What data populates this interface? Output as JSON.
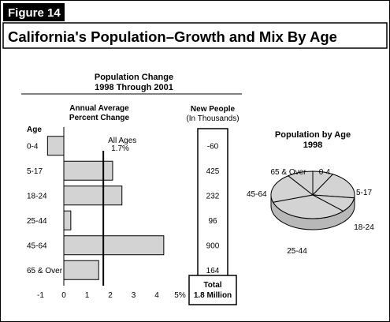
{
  "figure": {
    "badge": "Figure 14",
    "title": "California's Population–Growth and Mix By Age"
  },
  "chart_data": [
    {
      "type": "bar",
      "orientation": "horizontal",
      "title": "Population Change",
      "subtitle": "1998 Through 2001",
      "column_header": [
        "Annual Average",
        "Percent Change"
      ],
      "category_header": "Age",
      "categories": [
        "0-4",
        "5-17",
        "18-24",
        "25-44",
        "45-64",
        "65 & Over"
      ],
      "values": [
        -0.7,
        2.1,
        2.5,
        0.3,
        4.3,
        1.5
      ],
      "xlim": [
        -1,
        5
      ],
      "x_ticks": [
        "-1",
        "0",
        "1",
        "2",
        "3",
        "4",
        "5%"
      ],
      "reference_line": {
        "label": "All Ages",
        "value_label": "1.7%",
        "value": 1.7
      },
      "bar_color": "#d3d3d3"
    },
    {
      "type": "table",
      "header": [
        "New People",
        "(In Thousands)"
      ],
      "values": [
        "-60",
        "425",
        "232",
        "96",
        "900",
        "164"
      ],
      "total_label": "Total",
      "total_value": "1.8 Million"
    },
    {
      "type": "pie",
      "title": "Population by Age",
      "subtitle": "1998",
      "labels": [
        "0-4",
        "5-17",
        "18-24",
        "25-44",
        "45-64",
        "65 & Over"
      ],
      "values": [
        8,
        19,
        10,
        33,
        20,
        10
      ],
      "slice_color": "#d3d3d3"
    }
  ]
}
